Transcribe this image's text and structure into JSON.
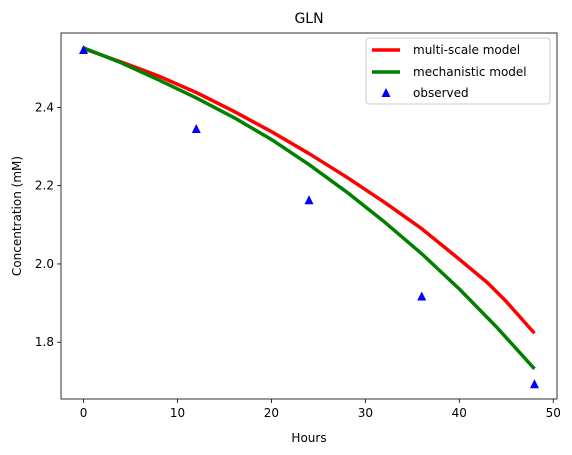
{
  "chart_data": {
    "type": "line",
    "title": "GLN",
    "xlabel": "Hours",
    "ylabel": "Concentration (mM)",
    "xlim": [
      -2.4,
      50.4
    ],
    "ylim": [
      1.655,
      2.59
    ],
    "xticks": [
      0,
      10,
      20,
      30,
      40,
      50
    ],
    "yticks": [
      1.8,
      2.0,
      2.2,
      2.4
    ],
    "ytick_labels": [
      "1.8",
      "2.0",
      "2.2",
      "2.4"
    ],
    "grid": false,
    "legend_position": "top-right",
    "series": [
      {
        "name": "multi-scale model",
        "kind": "line",
        "color": "#ff0000",
        "x": [
          0,
          4,
          8,
          12,
          16,
          20,
          24,
          28,
          32,
          36,
          40,
          43,
          45,
          48
        ],
        "y": [
          2.55,
          2.516,
          2.48,
          2.438,
          2.39,
          2.338,
          2.282,
          2.222,
          2.158,
          2.09,
          2.012,
          1.952,
          1.904,
          1.823
        ]
      },
      {
        "name": "mechanistic model",
        "kind": "line",
        "color": "#008000",
        "x": [
          0,
          4,
          8,
          12,
          16,
          20,
          24,
          28,
          32,
          36,
          40,
          44,
          48
        ],
        "y": [
          2.552,
          2.514,
          2.47,
          2.424,
          2.374,
          2.318,
          2.254,
          2.184,
          2.108,
          2.026,
          1.936,
          1.838,
          1.732
        ]
      },
      {
        "name": "observed",
        "kind": "scatter",
        "marker": "triangle",
        "color": "#0000ff",
        "x": [
          0,
          12,
          24,
          36,
          48
        ],
        "y": [
          2.548,
          2.346,
          2.164,
          1.918,
          1.694
        ]
      }
    ]
  }
}
